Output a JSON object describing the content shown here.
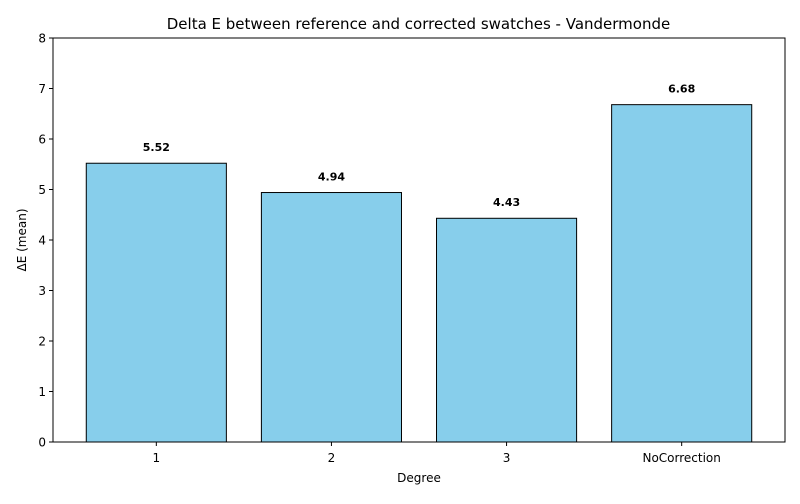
{
  "chart_data": {
    "type": "bar",
    "title": "Delta E between reference and corrected swatches - Vandermonde",
    "xlabel": "Degree",
    "ylabel": "ΔE (mean)",
    "categories": [
      "1",
      "2",
      "3",
      "NoCorrection"
    ],
    "values": [
      5.52,
      4.94,
      4.43,
      6.68
    ],
    "value_labels": [
      "5.52",
      "4.94",
      "4.43",
      "6.68"
    ],
    "ylim": [
      0,
      8
    ],
    "yticks": [
      "0",
      "1",
      "2",
      "3",
      "4",
      "5",
      "6",
      "7",
      "8"
    ],
    "grid": false,
    "bar_color": "#87CEEB",
    "bar_edge_color": "#000000"
  }
}
